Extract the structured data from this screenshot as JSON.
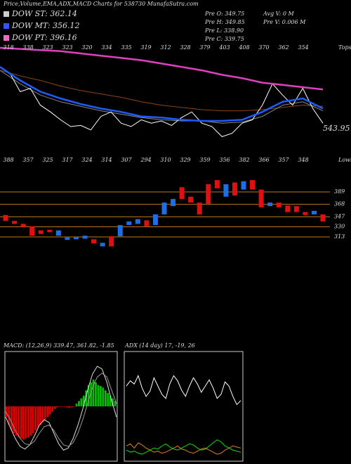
{
  "title": "Price,Volume,EMA,ADX,MACD Charts for 538730 MunafaSutra.com",
  "legend": [
    {
      "label": "DOW ST: 362.14",
      "color": "#cccccc"
    },
    {
      "label": "DOW MT: 356.12",
      "color": "#3355ff"
    },
    {
      "label": "DOW PT: 396.16",
      "color": "#ff66cc"
    }
  ],
  "info": [
    "Pre O: 349.75",
    "Pre H: 349.85",
    "Pre L: 338.90",
    "Pre C: 339.75"
  ],
  "info2": [
    "Avg V: 0 M",
    "Pre V: 0.006 M"
  ],
  "chart_data": [
    {
      "type": "line",
      "ylim": [
        0,
        100
      ],
      "series": [
        {
          "color": "#8b4513",
          "values": [
            75,
            70,
            66,
            61,
            57,
            54,
            51,
            47,
            44,
            42,
            40,
            39,
            39,
            40,
            42,
            44,
            43
          ]
        },
        {
          "color": "#888888",
          "values": [
            75,
            63,
            53,
            47,
            43,
            39,
            36,
            33,
            31,
            30,
            30,
            28,
            29,
            34,
            44,
            47,
            39
          ]
        },
        {
          "color": "#ffffff",
          "values": [
            78,
            72,
            56,
            59,
            44,
            38,
            31,
            25,
            26,
            22,
            34,
            38,
            28,
            25,
            31,
            28,
            30,
            26,
            33,
            38,
            28,
            25,
            16,
            19,
            28,
            31,
            44,
            63,
            53,
            44,
            59,
            41,
            28
          ]
        },
        {
          "color": "#1e5cff",
          "values": [
            78,
            66,
            56,
            50,
            45,
            41,
            38,
            34,
            33,
            31,
            30,
            30,
            31,
            38,
            47,
            50,
            41
          ]
        },
        {
          "color": "#e040c0",
          "values": [
            95,
            94,
            93,
            92,
            90,
            88,
            86,
            84,
            81,
            78,
            75,
            71,
            68,
            64,
            62,
            60,
            58
          ]
        }
      ],
      "tops": [
        318,
        338,
        323,
        323,
        320,
        334,
        335,
        319,
        312,
        328,
        379,
        403,
        408,
        370,
        362,
        354
      ],
      "tops_label": "Tops",
      "lows": [
        388,
        357,
        325,
        317,
        324,
        314,
        307,
        294,
        310,
        329,
        359,
        356,
        382,
        366,
        357,
        348
      ],
      "lows_label": "Lows",
      "price_label": "543.95"
    },
    {
      "type": "candlestick",
      "ylim": [
        300,
        410
      ],
      "yticks": [
        389,
        368,
        347,
        330,
        313
      ],
      "grid": true,
      "up_color": "#1e6ee6",
      "down_color": "#e01010",
      "open": [
        350,
        340,
        335,
        331,
        324,
        325,
        315,
        308,
        309,
        310,
        309,
        297,
        314,
        314,
        333,
        335,
        341,
        333,
        351,
        365,
        397,
        381,
        371,
        402,
        409,
        381,
        405,
        393,
        409,
        393,
        365,
        371,
        366,
        365,
        355,
        351,
        351
      ],
      "close": [
        340,
        335,
        330,
        315,
        318,
        321,
        324,
        312,
        313,
        315,
        302,
        303,
        297,
        333,
        339,
        343,
        331,
        351,
        371,
        377,
        377,
        371,
        351,
        369,
        395,
        402,
        383,
        407,
        393,
        363,
        371,
        363,
        355,
        355,
        350,
        357,
        339
      ]
    },
    {
      "type": "macd",
      "title": "MACD: (12,26,9) 339.47, 361.82, -1.85",
      "ylim": [
        -100,
        100
      ],
      "pos_color": "#00c000",
      "neg_color": "#e00000",
      "histogram": [
        -20,
        -35,
        -45,
        -50,
        -55,
        -58,
        -60,
        -62,
        -60,
        -58,
        -55,
        -50,
        -45,
        -40,
        -35,
        -30,
        -25,
        -20,
        -15,
        -10,
        -5,
        -2,
        -1,
        -1,
        -1,
        -2,
        -3,
        -2,
        -1,
        5,
        10,
        15,
        20,
        30,
        40,
        45,
        50,
        45,
        40,
        38,
        35,
        30,
        25,
        20,
        15,
        10
      ],
      "series": [
        {
          "color": "#dddddd",
          "values": [
            -20,
            -40,
            -60,
            -75,
            -80,
            -72,
            -55,
            -35,
            -25,
            -30,
            -50,
            -70,
            -82,
            -78,
            -60,
            -35,
            -5,
            30,
            60,
            75,
            70,
            45,
            10,
            -20
          ]
        },
        {
          "color": "#999999",
          "values": [
            -10,
            -25,
            -45,
            -60,
            -70,
            -72,
            -65,
            -50,
            -38,
            -35,
            -45,
            -60,
            -72,
            -75,
            -68,
            -50,
            -25,
            5,
            35,
            55,
            62,
            55,
            30,
            5
          ]
        }
      ]
    },
    {
      "type": "adx",
      "title": "ADX (14 day) 17, -19, 26",
      "ylim": [
        0,
        100
      ],
      "series": [
        {
          "color": "#ffffff",
          "values": [
            70,
            75,
            72,
            80,
            68,
            60,
            65,
            78,
            70,
            62,
            58,
            72,
            80,
            75,
            66,
            60,
            70,
            78,
            72,
            64,
            70,
            76,
            68,
            58,
            62,
            74,
            70,
            60,
            52,
            56
          ]
        },
        {
          "color": "#e08020",
          "values": [
            12,
            14,
            10,
            15,
            13,
            10,
            8,
            6,
            7,
            5,
            6,
            8,
            10,
            12,
            9,
            8,
            6,
            5,
            7,
            9,
            10,
            8,
            6,
            4,
            5,
            8,
            10,
            12,
            11,
            10
          ]
        },
        {
          "color": "#00e000",
          "values": [
            8,
            6,
            7,
            5,
            4,
            6,
            8,
            10,
            9,
            12,
            14,
            11,
            9,
            8,
            10,
            12,
            14,
            13,
            10,
            8,
            9,
            12,
            15,
            18,
            16,
            12,
            10,
            8,
            7,
            6
          ]
        }
      ]
    }
  ]
}
